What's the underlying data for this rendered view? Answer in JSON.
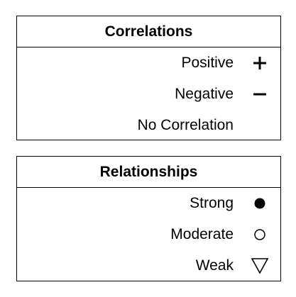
{
  "correlations": {
    "title": "Correlations",
    "items": [
      {
        "label": "Positive",
        "icon": "plus-icon"
      },
      {
        "label": "Negative",
        "icon": "minus-icon"
      },
      {
        "label": "No Correlation",
        "icon": ""
      }
    ]
  },
  "relationships": {
    "title": "Relationships",
    "items": [
      {
        "label": "Strong",
        "icon": "filled-circle-icon"
      },
      {
        "label": "Moderate",
        "icon": "open-circle-icon"
      },
      {
        "label": "Weak",
        "icon": "open-triangle-icon"
      }
    ]
  }
}
